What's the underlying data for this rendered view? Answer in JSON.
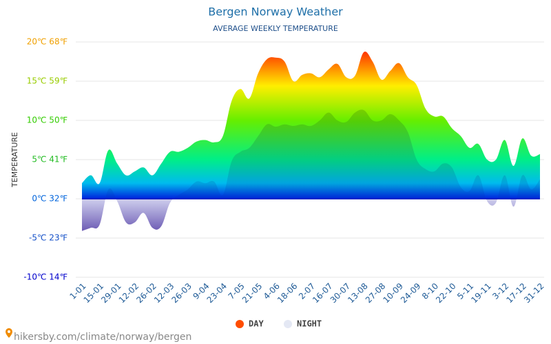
{
  "chart_data": {
    "type": "area",
    "title": "Bergen Norway Weather",
    "subtitle": "AVERAGE WEEKLY TEMPERATURE",
    "y_label": "TEMPERATURE",
    "categories": [
      "1-01",
      null,
      "15-01",
      null,
      "29-01",
      null,
      "12-02",
      null,
      "26-02",
      null,
      "12-03",
      null,
      "26-03",
      null,
      "9-04",
      null,
      "23-04",
      null,
      "7-05",
      null,
      "21-05",
      null,
      "4-06",
      null,
      "18-06",
      null,
      "2-07",
      null,
      "16-07",
      null,
      "30-07",
      null,
      "13-08",
      null,
      "27-08",
      null,
      "10-09",
      null,
      "24-09",
      null,
      "8-10",
      null,
      "22-10",
      null,
      "5-11",
      null,
      "19-11",
      null,
      "3-12",
      null,
      "17-12",
      null,
      "31-12"
    ],
    "series": [
      {
        "name": "DAY",
        "color": "#ff4d00",
        "values": [
          2,
          3,
          2,
          6.2,
          4.5,
          3,
          3.5,
          4,
          3,
          4.5,
          6,
          6,
          6.5,
          7.3,
          7.5,
          7.2,
          8,
          12.5,
          14,
          12.8,
          16,
          17.8,
          18,
          17.5,
          15,
          15.8,
          16,
          15.5,
          16.5,
          17.2,
          15.5,
          15.7,
          18.7,
          17.5,
          15.2,
          16.3,
          17.3,
          15.5,
          14.5,
          11.5,
          10.5,
          10.5,
          9,
          8,
          6.5,
          7,
          5,
          5,
          7.5,
          4.2,
          7.7,
          5.5,
          5.7
        ]
      },
      {
        "name": "NIGHT",
        "color": "#e4e8f4",
        "values": [
          -4.1,
          -3.7,
          -3.3,
          1.2,
          -0.3,
          -3,
          -3,
          -1.8,
          -3.7,
          -3.5,
          -0.5,
          0.5,
          1.2,
          2.2,
          2,
          2.2,
          0.5,
          4.8,
          6,
          6.5,
          8,
          9.5,
          9.2,
          9.5,
          9.3,
          9.5,
          9.3,
          10,
          11,
          10,
          9.8,
          11,
          11.3,
          10,
          10,
          10.8,
          10,
          8.5,
          5,
          3.8,
          3.5,
          4.5,
          4,
          1.5,
          1,
          3,
          -0.3,
          -0.5,
          3,
          -1,
          3,
          1.2,
          2.5
        ]
      }
    ],
    "ylim": [
      -10,
      20
    ],
    "yticks": [
      {
        "value": -10,
        "label": "-10℃ 14℉"
      },
      {
        "value": -5,
        "label": "-5℃ 23℉"
      },
      {
        "value": 0,
        "label": "0℃ 32℉"
      },
      {
        "value": 5,
        "label": "5℃ 41℉"
      },
      {
        "value": 10,
        "label": "10℃ 50℉"
      },
      {
        "value": 15,
        "label": "15℃ 59℉"
      },
      {
        "value": 20,
        "label": "20℃ 68℉"
      }
    ],
    "ytick_colors": [
      "#0000cc",
      "#1450c8",
      "#0064dc",
      "#22bb22",
      "#33cc00",
      "#99cc00",
      "#f0a000"
    ],
    "grid": true
  },
  "source": "hikersby.com/climate/norway/bergen"
}
